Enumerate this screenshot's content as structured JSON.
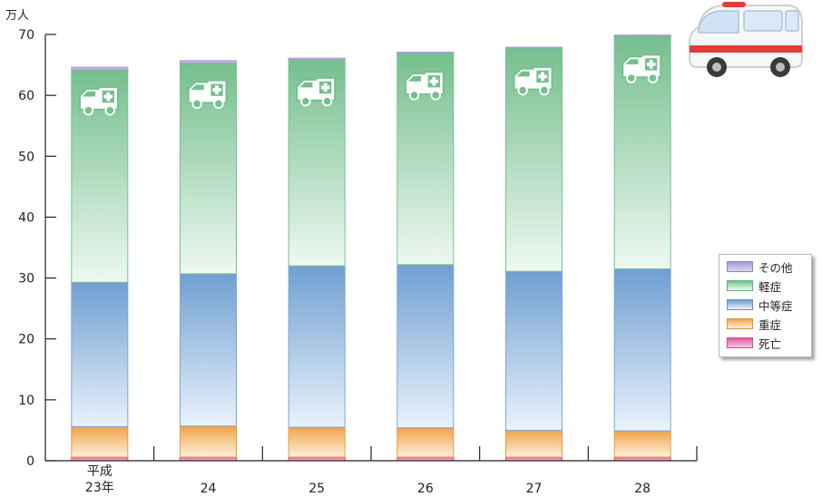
{
  "chart_data": {
    "type": "stacked-bar",
    "unit_label": "万人",
    "categories": [
      "平成\n23年",
      "24",
      "25",
      "26",
      "27",
      "28"
    ],
    "ylim": [
      0,
      70
    ],
    "yticks": [
      0,
      10,
      20,
      30,
      40,
      50,
      60,
      70
    ],
    "series": [
      {
        "name": "死亡",
        "values": [
          0.6,
          0.6,
          0.6,
          0.6,
          0.6,
          0.6
        ]
      },
      {
        "name": "重症",
        "values": [
          5.0,
          5.1,
          4.9,
          4.8,
          4.4,
          4.3
        ]
      },
      {
        "name": "中等症",
        "values": [
          23.7,
          25.0,
          26.5,
          26.8,
          26.1,
          26.6
        ]
      },
      {
        "name": "軽症",
        "values": [
          34.9,
          34.6,
          33.9,
          34.8,
          36.7,
          38.3
        ]
      },
      {
        "name": "その他",
        "values": [
          0.4,
          0.4,
          0.2,
          0.1,
          0.1,
          0.1
        ]
      }
    ],
    "colors": {
      "死亡": "#e25aa1",
      "重症": "#f0a347",
      "中等症": "#6f9fd1",
      "軽症": "#74bf8d",
      "その他": "#a69ad3"
    },
    "bar_icon": "ambulance-icon"
  },
  "decoration": {
    "icon": "ambulance-illustration"
  }
}
